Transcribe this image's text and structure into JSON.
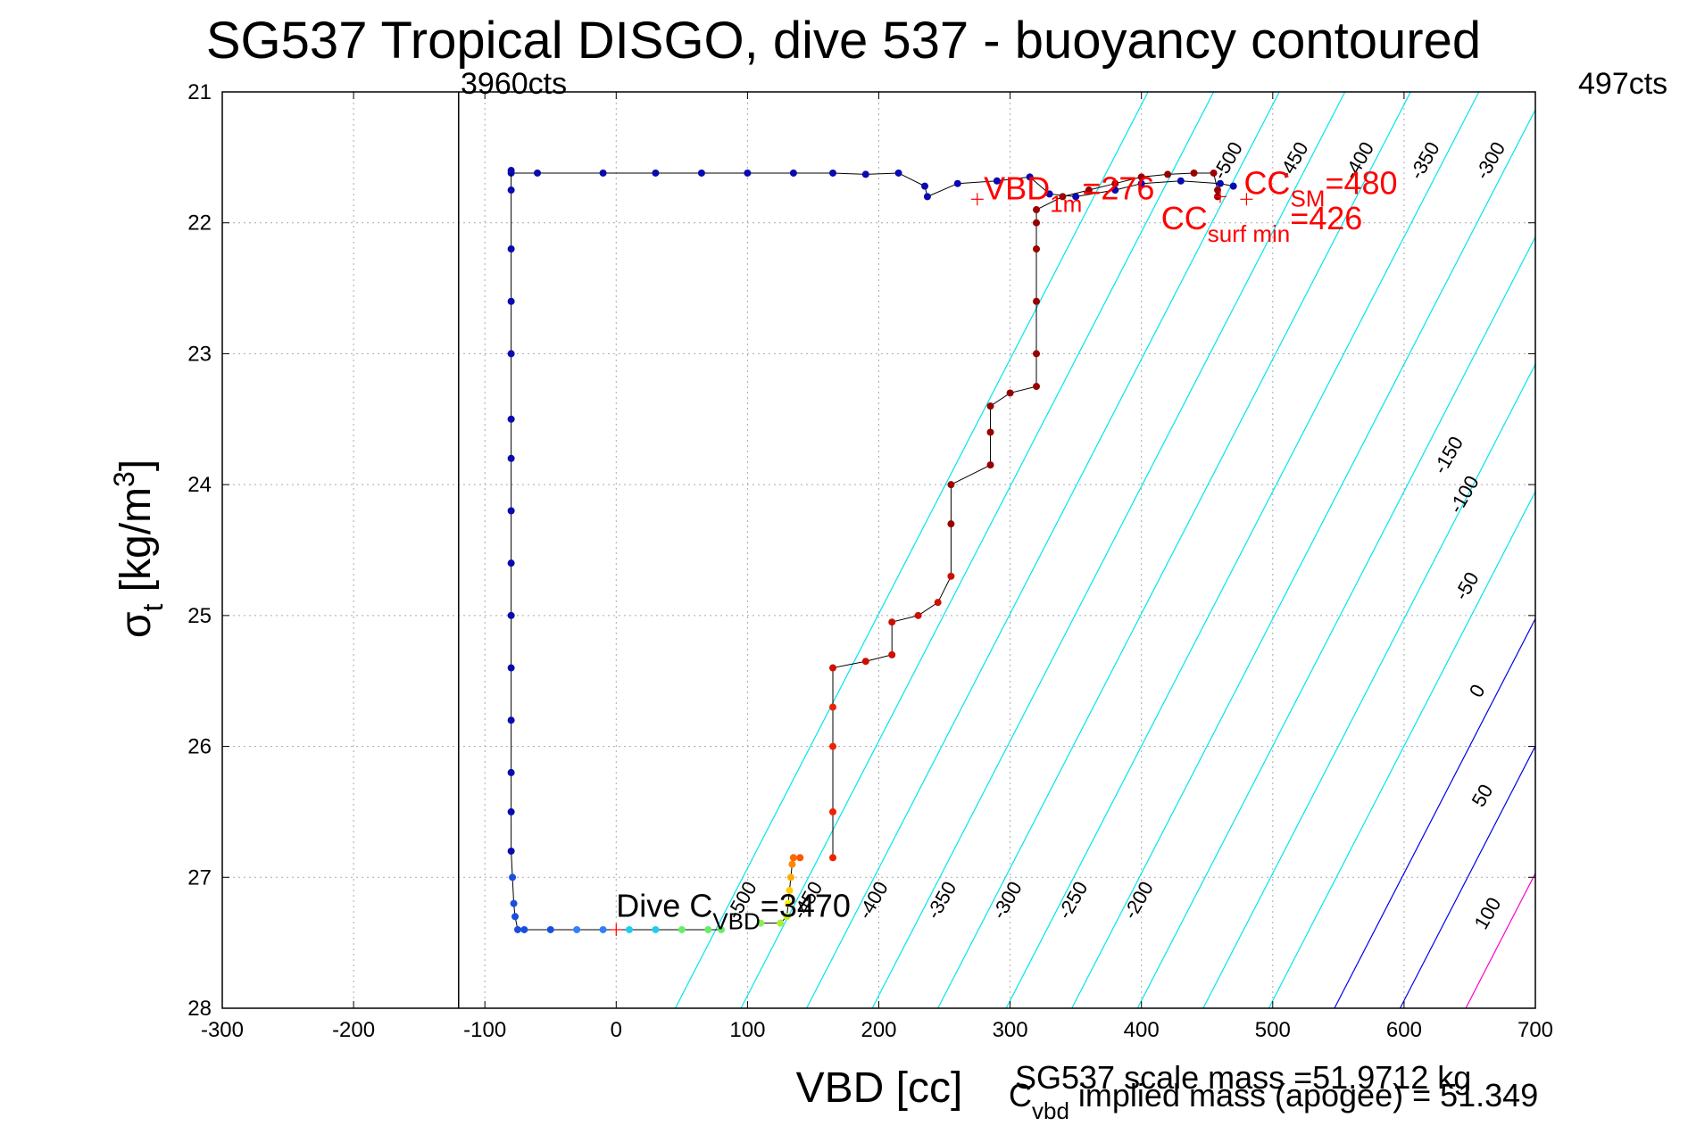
{
  "chart_data": {
    "type": "scatter",
    "title": "SG537 Tropical DISGO, dive 537 - buoyancy contoured",
    "xlabel": "VBD [cc]",
    "ylabel_base": "σ",
    "ylabel_sub": "t",
    "ylabel_unit": " [kg/m",
    "ylabel_sup": "3",
    "ylabel_close": "]",
    "xlim": [
      -300,
      700
    ],
    "ylim": [
      21,
      28
    ],
    "y_reversed": true,
    "grid": true,
    "x_ticks": [
      -300,
      -200,
      -100,
      0,
      100,
      200,
      300,
      400,
      500,
      600,
      700
    ],
    "y_ticks": [
      21,
      22,
      23,
      24,
      25,
      26,
      27,
      28
    ],
    "top_left_label": "3960cts",
    "top_right_label": "497cts",
    "vertical_line_x": -120,
    "contours": {
      "slope": 0.0127,
      "ref_sigma": 27.4,
      "cyan": [
        {
          "label": "-500",
          "x0": 45,
          "lx": 100,
          "ly": 27.2,
          "ux": 470,
          "uy": 21.55
        },
        {
          "label": "-450",
          "x0": 95,
          "lx": 150,
          "ly": 27.2,
          "ux": 520,
          "uy": 21.55
        },
        {
          "label": "-400",
          "x0": 145,
          "lx": 200,
          "ly": 27.2,
          "ux": 570,
          "uy": 21.55
        },
        {
          "label": "-350",
          "x0": 195,
          "lx": 252,
          "ly": 27.2,
          "ux": 620,
          "uy": 21.55
        },
        {
          "label": "-300",
          "x0": 245,
          "lx": 302,
          "ly": 27.2,
          "ux": 670,
          "uy": 21.55
        },
        {
          "label": "-250",
          "x0": 297,
          "lx": 352,
          "ly": 27.2,
          "ux": 710,
          "uy": 21.55
        },
        {
          "label": "-200",
          "x0": 347,
          "lx": 402,
          "ly": 27.2,
          "ux": 760,
          "uy": 21.55
        },
        {
          "label": "-150",
          "x0": 397,
          "lx": 638,
          "ly": 23.8
        },
        {
          "label": "-100",
          "x0": 447,
          "lx": 650,
          "ly": 24.1
        },
        {
          "label": "-50",
          "x0": 497,
          "lx": 652,
          "ly": 24.8
        }
      ],
      "colored": [
        {
          "label": "0",
          "x0": 547,
          "color": "#0000ee",
          "lx": 660,
          "ly": 25.6
        },
        {
          "label": "50",
          "x0": 597,
          "color": "#0000ee",
          "lx": 664,
          "ly": 26.4
        },
        {
          "label": "100",
          "x0": 647,
          "color": "#ff00cc",
          "lx": 668,
          "ly": 27.3
        }
      ],
      "cyan_color": "#00e5ee"
    },
    "series": {
      "dive": [
        [
          -80,
          21.6
        ],
        [
          -80,
          21.75
        ],
        [
          -80,
          22.2
        ],
        [
          -80,
          22.6
        ],
        [
          -80,
          23.0
        ],
        [
          -80,
          23.5
        ],
        [
          -80,
          23.8
        ],
        [
          -80,
          24.2
        ],
        [
          -80,
          24.6
        ],
        [
          -80,
          25.0
        ],
        [
          -80,
          25.4
        ],
        [
          -80,
          25.8
        ],
        [
          -80,
          26.2
        ],
        [
          -80,
          26.5
        ],
        [
          -80,
          26.8
        ],
        [
          -79,
          27.0
        ],
        [
          -78,
          27.2
        ],
        [
          -77,
          27.3
        ],
        [
          -75,
          27.4
        ],
        [
          -70,
          27.4
        ],
        [
          -50,
          27.4
        ],
        [
          -30,
          27.4
        ],
        [
          -10,
          27.4
        ],
        [
          10,
          27.4
        ],
        [
          30,
          27.4
        ],
        [
          50,
          27.4
        ],
        [
          70,
          27.4
        ],
        [
          80,
          27.4
        ]
      ],
      "apogee": [
        [
          110,
          27.35
        ],
        [
          125,
          27.35
        ],
        [
          130,
          27.3
        ],
        [
          131,
          27.2
        ],
        [
          132,
          27.1
        ],
        [
          133,
          27.0
        ],
        [
          134,
          26.9
        ],
        [
          135,
          26.85
        ],
        [
          140,
          26.85
        ]
      ],
      "climb": [
        [
          165,
          26.85
        ],
        [
          165,
          26.5
        ],
        [
          165,
          26.0
        ],
        [
          165,
          25.7
        ],
        [
          165,
          25.4
        ],
        [
          190,
          25.35
        ],
        [
          210,
          25.3
        ],
        [
          210,
          25.05
        ],
        [
          230,
          25.0
        ],
        [
          245,
          24.9
        ],
        [
          255,
          24.7
        ],
        [
          255,
          24.3
        ],
        [
          255,
          24.0
        ],
        [
          285,
          23.85
        ],
        [
          285,
          23.6
        ],
        [
          285,
          23.4
        ],
        [
          300,
          23.3
        ],
        [
          320,
          23.25
        ],
        [
          320,
          23.0
        ],
        [
          320,
          22.6
        ],
        [
          320,
          22.2
        ],
        [
          320,
          22.0
        ],
        [
          320,
          21.9
        ],
        [
          340,
          21.8
        ],
        [
          360,
          21.75
        ],
        [
          380,
          21.7
        ],
        [
          400,
          21.65
        ],
        [
          420,
          21.63
        ],
        [
          440,
          21.62
        ],
        [
          455,
          21.62
        ],
        [
          458,
          21.75
        ],
        [
          458,
          21.8
        ]
      ],
      "surface": [
        [
          -80,
          21.62
        ],
        [
          -60,
          21.62
        ],
        [
          -10,
          21.62
        ],
        [
          30,
          21.62
        ],
        [
          65,
          21.62
        ],
        [
          100,
          21.62
        ],
        [
          135,
          21.62
        ],
        [
          165,
          21.62
        ],
        [
          190,
          21.63
        ],
        [
          215,
          21.62
        ],
        [
          235,
          21.72
        ],
        [
          237,
          21.8
        ],
        [
          260,
          21.7
        ],
        [
          290,
          21.68
        ],
        [
          315,
          21.65
        ],
        [
          330,
          21.78
        ],
        [
          350,
          21.8
        ],
        [
          380,
          21.75
        ],
        [
          400,
          21.7
        ],
        [
          430,
          21.68
        ],
        [
          460,
          21.7
        ],
        [
          470,
          21.72
        ]
      ]
    },
    "markers": [
      {
        "label_main": "VBD",
        "label_sub": "1m",
        "label_tail": "=276",
        "x": 275,
        "y": 21.82,
        "lx": 280,
        "ly": 21.82
      },
      {
        "label_main": "CC",
        "label_sub": "SM",
        "label_tail": "=480",
        "x": 480,
        "y": 21.82,
        "lx": 478,
        "ly": 21.78
      },
      {
        "label_main": "CC",
        "label_sub": "surf min",
        "label_tail": "=426",
        "x": 460,
        "y": 21.8,
        "lx": 415,
        "ly": 22.05
      },
      {
        "label_main": "Dive C",
        "label_sub": "VBD",
        "label_tail": "=3470",
        "x": 0,
        "y": 27.4,
        "lx": 0,
        "ly": 27.3
      }
    ],
    "footer_line1": "SG537 scale mass =51.9712 kg",
    "footer_line2_main": "C",
    "footer_line2_sub": "vbd",
    "footer_line2_tail": " implied mass (apogee) = 51.349"
  }
}
